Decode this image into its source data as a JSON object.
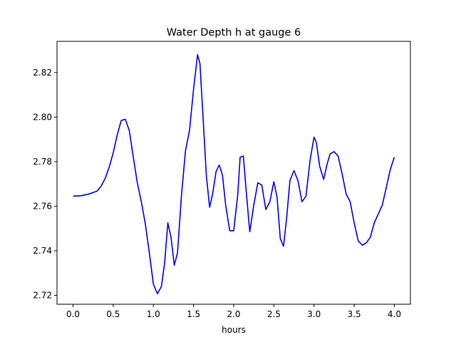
{
  "chart_data": {
    "type": "line",
    "title": "Water Depth h at gauge 6",
    "xlabel": "hours",
    "ylabel": "",
    "xlim": [
      -0.2,
      4.2
    ],
    "ylim": [
      2.716,
      2.834
    ],
    "xticks": [
      0.0,
      0.5,
      1.0,
      1.5,
      2.0,
      2.5,
      3.0,
      3.5,
      4.0
    ],
    "xtick_labels": [
      "0.0",
      "0.5",
      "1.0",
      "1.5",
      "2.0",
      "2.5",
      "3.0",
      "3.5",
      "4.0"
    ],
    "yticks": [
      2.72,
      2.74,
      2.76,
      2.78,
      2.8,
      2.82
    ],
    "ytick_labels": [
      "2.72",
      "2.74",
      "2.76",
      "2.78",
      "2.80",
      "2.82"
    ],
    "grid": false,
    "series": [
      {
        "color": "#0000ff",
        "x": [
          0.0,
          0.1,
          0.2,
          0.3,
          0.35,
          0.4,
          0.45,
          0.5,
          0.55,
          0.6,
          0.65,
          0.7,
          0.75,
          0.8,
          0.85,
          0.9,
          0.95,
          1.0,
          1.05,
          1.1,
          1.14,
          1.18,
          1.22,
          1.26,
          1.3,
          1.35,
          1.4,
          1.45,
          1.5,
          1.55,
          1.58,
          1.62,
          1.66,
          1.7,
          1.74,
          1.78,
          1.82,
          1.86,
          1.9,
          1.95,
          2.0,
          2.05,
          2.08,
          2.12,
          2.16,
          2.2,
          2.25,
          2.3,
          2.35,
          2.4,
          2.45,
          2.5,
          2.54,
          2.58,
          2.62,
          2.66,
          2.7,
          2.75,
          2.8,
          2.85,
          2.9,
          2.95,
          3.0,
          3.03,
          3.07,
          3.12,
          3.16,
          3.2,
          3.25,
          3.3,
          3.35,
          3.4,
          3.45,
          3.5,
          3.55,
          3.6,
          3.65,
          3.7,
          3.75,
          3.8,
          3.85,
          3.9,
          3.95,
          4.0
        ],
        "y": [
          2.7645,
          2.7647,
          2.7655,
          2.7668,
          2.769,
          2.7725,
          2.7775,
          2.784,
          2.792,
          2.7985,
          2.799,
          2.794,
          2.782,
          2.7705,
          2.762,
          2.752,
          2.739,
          2.725,
          2.7207,
          2.724,
          2.7345,
          2.7525,
          2.746,
          2.7335,
          2.739,
          2.765,
          2.785,
          2.794,
          2.8125,
          2.828,
          2.824,
          2.799,
          2.7735,
          2.7595,
          2.766,
          2.7755,
          2.7785,
          2.774,
          2.7605,
          2.749,
          2.749,
          2.765,
          2.782,
          2.7825,
          2.765,
          2.7485,
          2.7605,
          2.7705,
          2.7695,
          2.7585,
          2.762,
          2.771,
          2.764,
          2.7455,
          2.742,
          2.755,
          2.7715,
          2.776,
          2.7715,
          2.762,
          2.7645,
          2.7805,
          2.791,
          2.7885,
          2.778,
          2.772,
          2.7785,
          2.7835,
          2.7845,
          2.7825,
          2.7745,
          2.7655,
          2.762,
          2.7525,
          2.7445,
          2.7425,
          2.7435,
          2.746,
          2.7525,
          2.7565,
          2.7605,
          2.7685,
          2.7765,
          2.782
        ]
      }
    ]
  }
}
